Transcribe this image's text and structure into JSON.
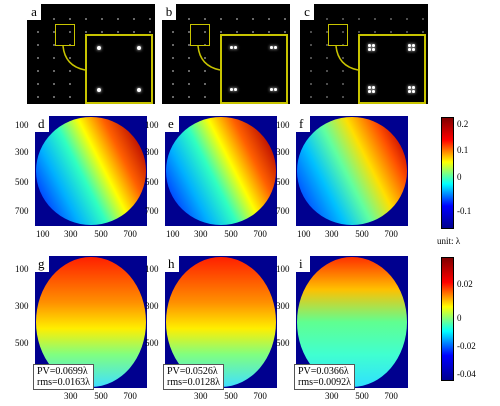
{
  "spot_panels": [
    {
      "letter": "a",
      "inset_spot_style": "single"
    },
    {
      "letter": "b",
      "inset_spot_style": "double"
    },
    {
      "letter": "c",
      "inset_spot_style": "quad"
    }
  ],
  "maps_row1": [
    {
      "letter": "d",
      "pattern": "tilt-warm-right"
    },
    {
      "letter": "e",
      "pattern": "tilt-warm-right"
    },
    {
      "letter": "f",
      "pattern": "tilt-warm-right-softer"
    }
  ],
  "maps_row2": [
    {
      "letter": "g",
      "pattern": "defocus-warm-top",
      "pv": "PV=0.0699λ",
      "rms": "rms=0.0163λ"
    },
    {
      "letter": "h",
      "pattern": "defocus-warm-top",
      "pv": "PV=0.0526λ",
      "rms": "rms=0.0128λ"
    },
    {
      "letter": "i",
      "pattern": "flatter",
      "pv": "PV=0.0366λ",
      "rms": "rms=0.0092λ"
    }
  ],
  "axis": {
    "y_ticks": [
      "100",
      "300",
      "500",
      "700"
    ],
    "x_ticks": [
      "100",
      "300",
      "500",
      "700"
    ],
    "x_ticks_row2": [
      "300",
      "500",
      "700"
    ]
  },
  "colorbar1": {
    "ticks": [
      "0.2",
      "0.1",
      "0",
      "-0.1"
    ],
    "unit": "unit: λ"
  },
  "colorbar2": {
    "ticks": [
      "0.02",
      "0",
      "-0.02",
      "-0.04"
    ]
  },
  "colors": {
    "jet_dark_blue": "#00008f",
    "jet_red": "#b00000",
    "inset_border": "#c8c400"
  }
}
